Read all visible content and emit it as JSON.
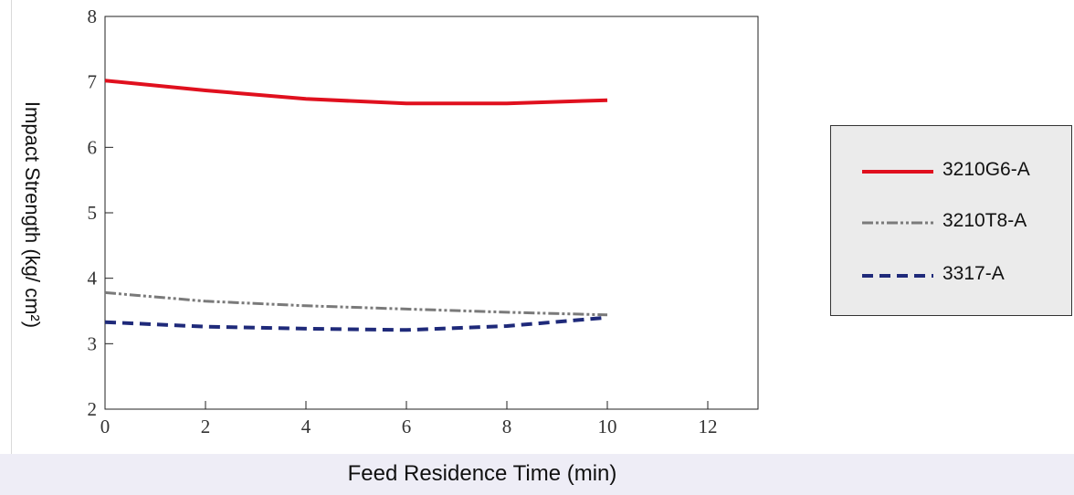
{
  "chart_data": {
    "type": "line",
    "title": "",
    "xlabel": "Feed Residence Time (min)",
    "ylabel": "Impact Strength (kg/ cm²)",
    "xlim": [
      0,
      13
    ],
    "ylim": [
      2,
      8
    ],
    "xticks": [
      0,
      2,
      4,
      6,
      8,
      10,
      12
    ],
    "yticks": [
      2,
      3,
      4,
      5,
      6,
      7,
      8
    ],
    "grid": false,
    "legend_position": "right",
    "series": [
      {
        "name": "3210G6-A",
        "color": "#e0101e",
        "style": "solid",
        "points": [
          [
            0,
            7.02
          ],
          [
            2,
            6.87
          ],
          [
            4,
            6.74
          ],
          [
            6,
            6.67
          ],
          [
            8,
            6.67
          ],
          [
            10,
            6.72
          ]
        ]
      },
      {
        "name": "3210T8-A",
        "color": "#7a7a7a",
        "style": "dash-dot-dot",
        "points": [
          [
            0,
            3.78
          ],
          [
            2,
            3.65
          ],
          [
            4,
            3.58
          ],
          [
            6,
            3.53
          ],
          [
            8,
            3.48
          ],
          [
            10,
            3.44
          ]
        ]
      },
      {
        "name": "3317-A",
        "color": "#1f2a7a",
        "style": "dashed",
        "points": [
          [
            0,
            3.33
          ],
          [
            2,
            3.26
          ],
          [
            4,
            3.23
          ],
          [
            6,
            3.21
          ],
          [
            8,
            3.27
          ],
          [
            10,
            3.4
          ]
        ]
      }
    ]
  }
}
